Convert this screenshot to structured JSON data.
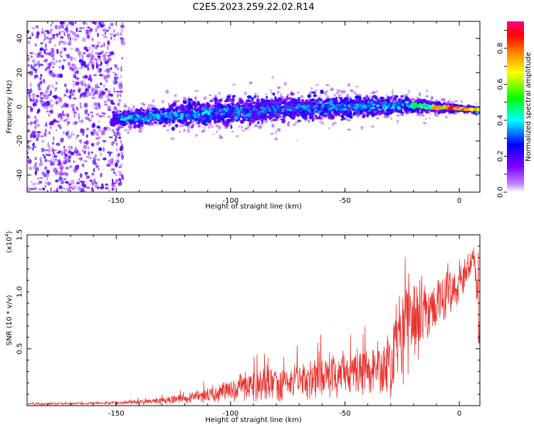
{
  "page_title": "C2E5.2023.259.22.02.R14",
  "chart_data": [
    {
      "type": "heatmap",
      "title": "C2E5.2023.259.22.02.R14",
      "xlabel": "Height of straight line (km)",
      "ylabel": "Frequency (Hz)",
      "xlim": [
        -189,
        9
      ],
      "ylim": [
        -50,
        50
      ],
      "xticks": [
        -150,
        -100,
        -50,
        0
      ],
      "yticks": [
        -40,
        -20,
        0,
        20,
        40
      ],
      "grid": false,
      "colorbar": {
        "label": "Normalized spectral amplitude",
        "range": [
          0.0,
          0.95
        ],
        "ticks": [
          0.0,
          0.2,
          0.4,
          0.6,
          0.8
        ],
        "colormap": [
          "#ffffff",
          "#9b30ff",
          "#2020ff",
          "#00ffff",
          "#00ff00",
          "#ffff00",
          "#ff8000",
          "#ff0000",
          "#ff0080"
        ]
      },
      "ridge": {
        "description_points_x": [
          -150,
          -125,
          -100,
          -75,
          -50,
          -25,
          0,
          9
        ],
        "center_freq_hz": [
          -7,
          -5,
          -3,
          -1,
          0,
          1,
          -1,
          -2
        ],
        "half_width_hz": [
          5,
          7,
          9,
          8,
          7,
          6,
          2,
          2
        ],
        "peak_amplitude": [
          0.45,
          0.45,
          0.4,
          0.4,
          0.4,
          0.45,
          0.9,
          0.85
        ]
      },
      "noise_region": {
        "x_range": [
          -189,
          -150
        ],
        "freq_range": [
          -50,
          50
        ],
        "color": "#8a2be2"
      }
    },
    {
      "type": "line",
      "xlabel": "Height of straight line (km)",
      "ylabel": "SNR (10 * v/v)",
      "ylabel_scale": "(x10",
      "ylabel_scale_exp": "4",
      "ylabel_scale_close": ")",
      "xlim": [
        -189,
        9
      ],
      "ylim": [
        0,
        1.5
      ],
      "xticks": [
        -150,
        -100,
        -50,
        0
      ],
      "yticks": [
        0.5,
        1.0,
        1.5
      ],
      "ytick_labels": [
        "0.5",
        "1.0",
        "1.5"
      ],
      "grid": false,
      "series": [
        {
          "color": "#e8322e",
          "envelope_x": [
            -189,
            -160,
            -140,
            -120,
            -105,
            -95,
            -80,
            -65,
            -50,
            -40,
            -30,
            -27,
            -24,
            -20,
            -15,
            -10,
            -5,
            0,
            4,
            6,
            8,
            9
          ],
          "envelope_mean": [
            0.015,
            0.02,
            0.03,
            0.06,
            0.12,
            0.16,
            0.2,
            0.22,
            0.28,
            0.3,
            0.33,
            0.55,
            0.7,
            0.75,
            0.8,
            0.9,
            1.0,
            1.05,
            1.2,
            1.35,
            0.9,
            0.5
          ],
          "envelope_amp": [
            0.01,
            0.01,
            0.02,
            0.04,
            0.08,
            0.12,
            0.15,
            0.17,
            0.2,
            0.22,
            0.3,
            0.35,
            0.45,
            0.35,
            0.3,
            0.25,
            0.2,
            0.15,
            0.15,
            0.12,
            0.35,
            0.1
          ]
        }
      ]
    }
  ]
}
